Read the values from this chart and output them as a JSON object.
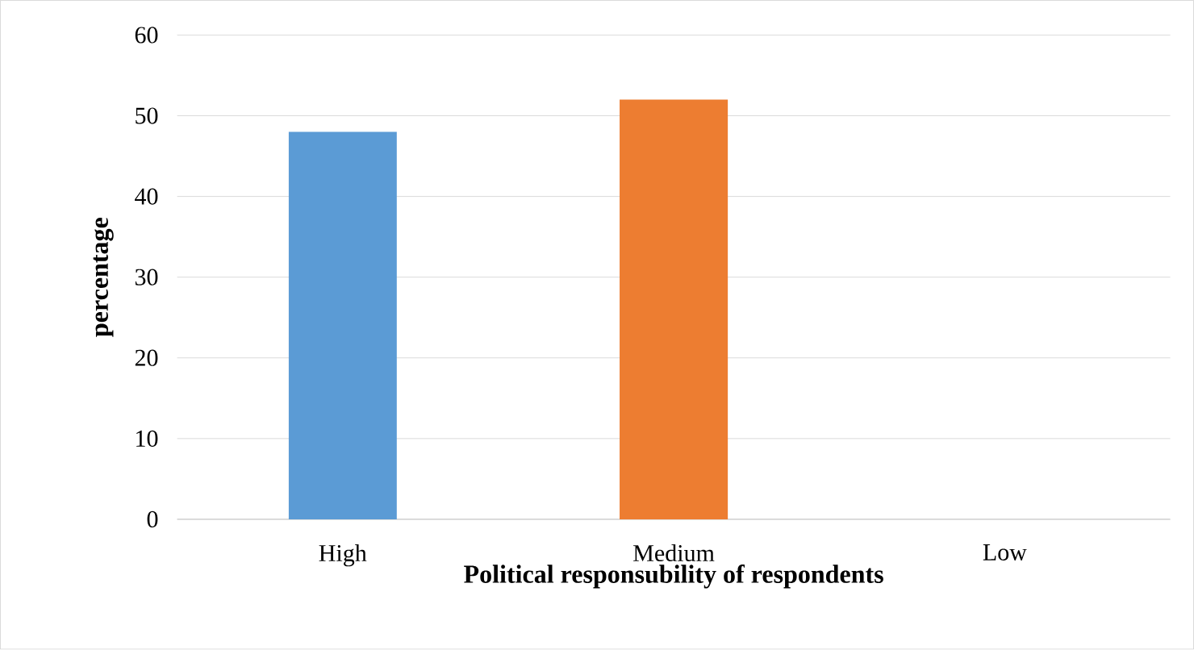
{
  "chart_data": {
    "type": "bar",
    "xlabel": "Political responsubility of respondents",
    "ylabel": "percentage",
    "categories": [
      "High",
      "Medium",
      "Low"
    ],
    "values": [
      48,
      52,
      0
    ],
    "colors": [
      "#5b9bd5",
      "#ed7d31",
      "#a5a5a5"
    ],
    "ylim": [
      0,
      60
    ],
    "yticks": [
      0,
      10,
      20,
      30,
      40,
      50,
      60
    ],
    "grid": "y"
  }
}
